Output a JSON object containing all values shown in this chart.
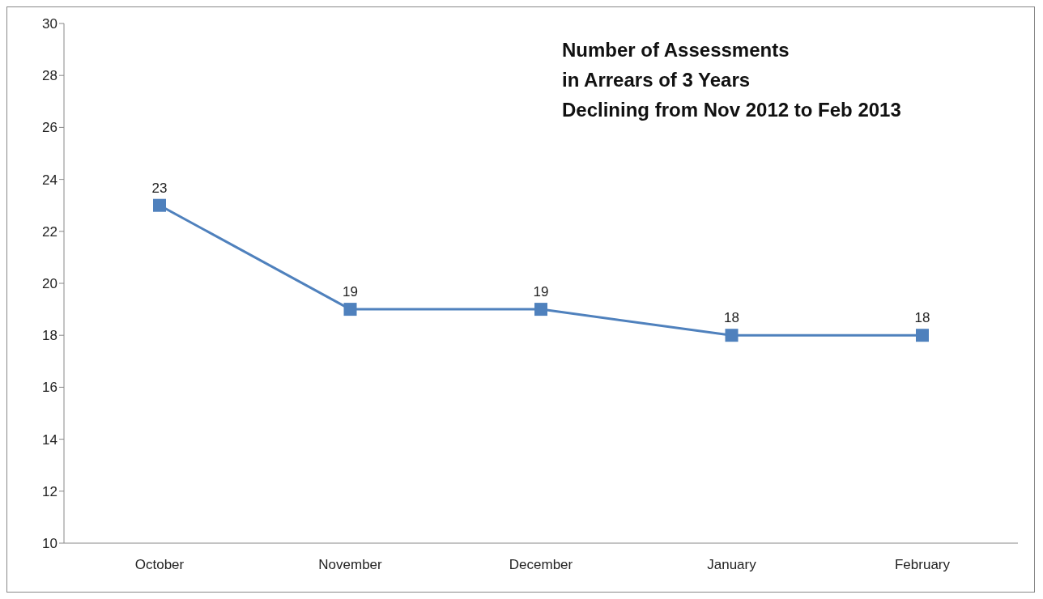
{
  "chart_data": {
    "type": "line",
    "title": "Number of Assessments\nin Arrears of 3 Years\nDeclining from Nov 2012 to Feb 2013",
    "categories": [
      "October",
      "November",
      "December",
      "January",
      "February"
    ],
    "series": [
      {
        "color": "#4f81bd",
        "values": [
          23,
          19,
          19,
          18,
          18
        ]
      }
    ],
    "ylim": [
      10,
      30
    ],
    "yticks": [
      10,
      12,
      14,
      16,
      18,
      20,
      22,
      24,
      26,
      28,
      30
    ],
    "marker": "square",
    "line_style": "solid",
    "data_labels": true
  }
}
